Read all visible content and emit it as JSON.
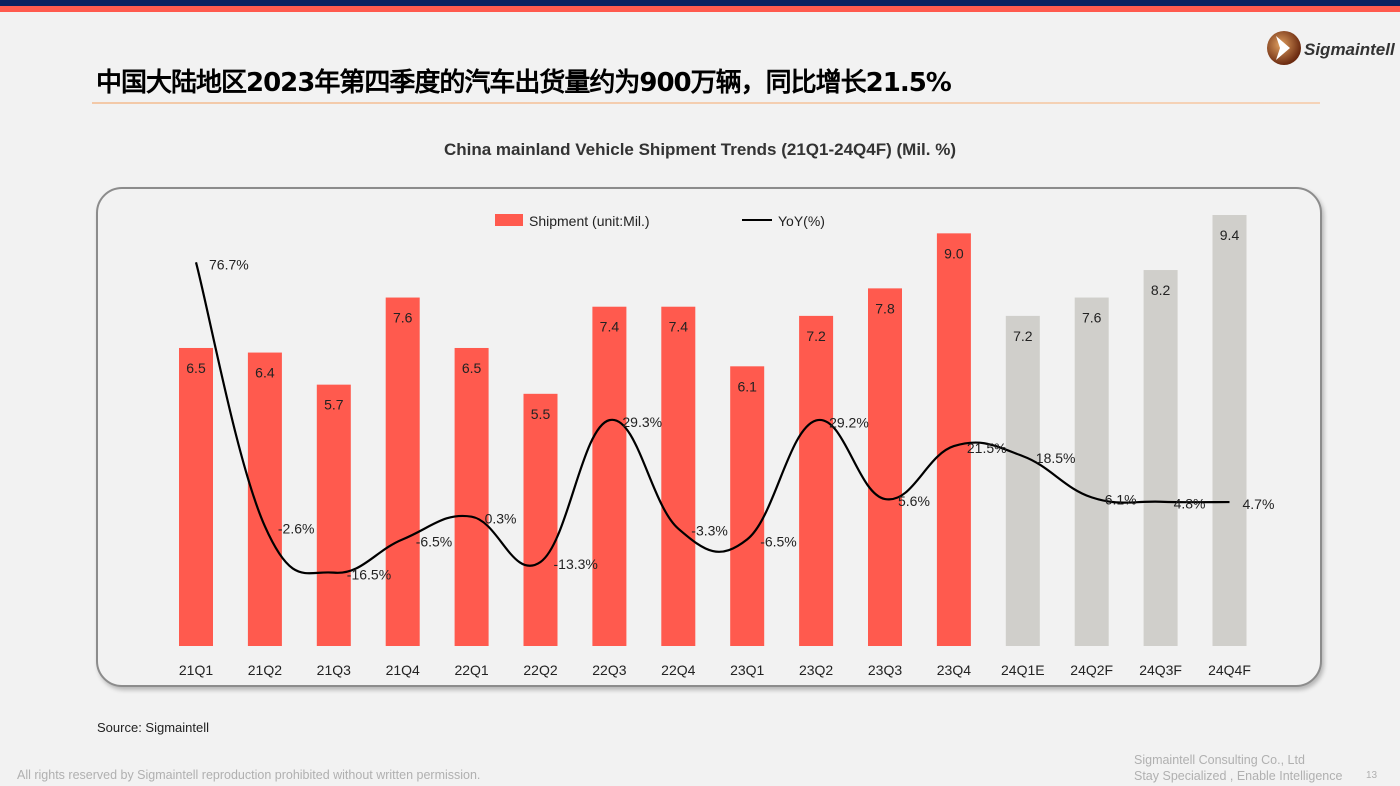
{
  "header": {
    "title": "中国大陆地区2023年第四季度的汽车出货量约为900万辆，同比增长21.5%",
    "logo_text": "Sigmaintell"
  },
  "colors": {
    "actual": "#ff5a4e",
    "forecast": "#d0cfcb",
    "line": "#000000",
    "top_band": "#0b2160",
    "accent_band": "#ff5a4e"
  },
  "chart_data": {
    "type": "bar+line",
    "title": "China mainland Vehicle Shipment Trends (21Q1-24Q4F) (Mil. %)",
    "categories": [
      "21Q1",
      "21Q2",
      "21Q3",
      "21Q4",
      "22Q1",
      "22Q2",
      "22Q3",
      "22Q4",
      "23Q1",
      "23Q2",
      "23Q3",
      "23Q4",
      "24Q1E",
      "24Q2F",
      "24Q3F",
      "24Q4F"
    ],
    "series": [
      {
        "name": "Shipment (unit:Mil.)",
        "type": "bar",
        "values": [
          6.5,
          6.4,
          5.7,
          7.6,
          6.5,
          5.5,
          7.4,
          7.4,
          6.1,
          7.2,
          7.8,
          9.0,
          7.2,
          7.6,
          8.2,
          9.4
        ],
        "labels": [
          "6.5",
          "6.4",
          "5.7",
          "7.6",
          "6.5",
          "5.5",
          "7.4",
          "7.4",
          "6.1",
          "7.2",
          "7.8",
          "9.0",
          "7.2",
          "7.6",
          "8.2",
          "9.4"
        ],
        "forecast_from_index": 12
      },
      {
        "name": "YoY(%)",
        "type": "line",
        "smooth": true,
        "values": [
          76.7,
          -2.6,
          -16.5,
          -6.5,
          0.3,
          -13.3,
          29.3,
          -3.3,
          -6.5,
          29.2,
          5.6,
          21.5,
          18.5,
          6.1,
          4.8,
          4.7
        ],
        "labels": [
          "76.7%",
          "-2.6%",
          "-16.5%",
          "-6.5%",
          "0.3%",
          "-13.3%",
          "29.3%",
          "-3.3%",
          "-6.5%",
          "29.2%",
          "5.6%",
          "21.5%",
          "18.5%",
          "6.1%",
          "4.8%",
          "4.7%"
        ]
      }
    ],
    "legend": "top-center",
    "grid": false
  },
  "footer": {
    "source": "Source: Sigmaintell",
    "rights": "All rights reserved by Sigmaintell reproduction prohibited without written permission.",
    "company": "Sigmaintell Consulting Co., Ltd",
    "slogan": "Stay Specialized , Enable Intelligence",
    "page": "13"
  }
}
